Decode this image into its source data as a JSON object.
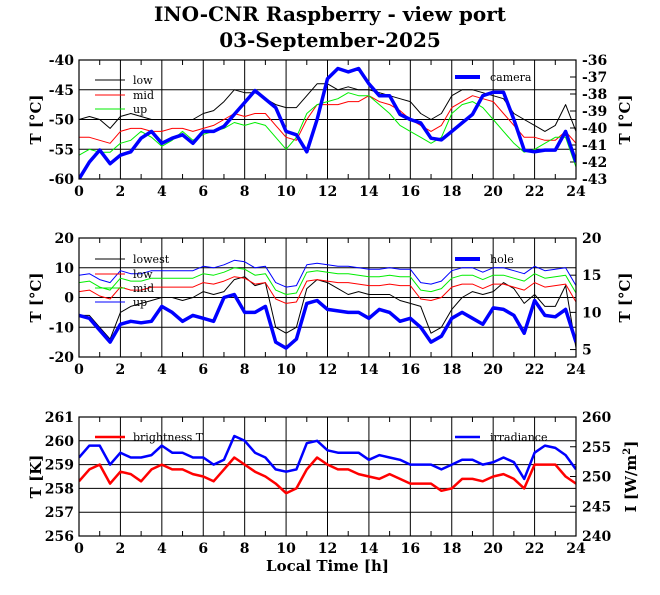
{
  "title": "INO-CNR Raspberry - view port",
  "subtitle": "03-September-2025",
  "colors": {
    "black": "#000000",
    "red": "#ff0000",
    "green": "#00ee00",
    "blue": "#0000ff"
  },
  "chart_data": [
    {
      "type": "line",
      "title": "",
      "xlabel": "",
      "ylabel": "T [°C]",
      "ylabel_right": "T [°C]",
      "xlim": [
        0,
        24
      ],
      "ylim": [
        -60,
        -40
      ],
      "ylim_right": [
        -43,
        -36
      ],
      "xticks": [
        "0",
        "2",
        "4",
        "6",
        "8",
        "10",
        "12",
        "14",
        "16",
        "18",
        "20",
        "22",
        "24"
      ],
      "yticks": [
        "-60",
        "-55",
        "-50",
        "-45",
        "-40"
      ],
      "yticks_right": [
        "-43",
        "-42",
        "-41",
        "-40",
        "-39",
        "-38",
        "-37",
        "-36"
      ],
      "grid": true,
      "legend_left": "top-left",
      "legend_right": "top-right",
      "x": [
        0,
        0.5,
        1,
        1.5,
        2,
        2.5,
        3,
        3.5,
        4,
        4.5,
        5,
        5.5,
        6,
        6.5,
        7,
        7.5,
        8,
        8.5,
        9,
        9.5,
        10,
        10.5,
        11,
        11.5,
        12,
        12.5,
        13,
        13.5,
        14,
        14.5,
        15,
        15.5,
        16,
        16.5,
        17,
        17.5,
        18,
        18.5,
        19,
        19.5,
        20,
        20.5,
        21,
        21.5,
        22,
        22.5,
        23,
        23.5,
        24
      ],
      "series": [
        {
          "name": "low",
          "axis": "left",
          "color": "#000000",
          "values": [
            -50,
            -49.5,
            -50,
            -51.5,
            -49.5,
            -49,
            -49.5,
            -50,
            -50,
            -50,
            -50,
            -50,
            -49,
            -48.5,
            -47,
            -45,
            -45.5,
            -45.5,
            -46.5,
            -47.5,
            -48,
            -48,
            -46,
            -44,
            -44,
            -45,
            -44.5,
            -45,
            -45,
            -45.5,
            -46,
            -46.5,
            -47,
            -49,
            -50,
            -49,
            -46,
            -45,
            -45,
            -45.5,
            -46,
            -46.5,
            -49,
            -50,
            -51,
            -52,
            -51,
            -47.5,
            -52
          ]
        },
        {
          "name": "mid",
          "axis": "left",
          "color": "#ff0000",
          "values": [
            -53,
            -53,
            -53.5,
            -54,
            -52,
            -51.5,
            -51.5,
            -52,
            -52,
            -51.5,
            -51.5,
            -52,
            -51.5,
            -51,
            -50,
            -49,
            -49.5,
            -49,
            -49,
            -51,
            -53,
            -53.5,
            -50,
            -47.5,
            -47.5,
            -47.5,
            -47,
            -47,
            -46,
            -47,
            -47.5,
            -48.5,
            -50,
            -51,
            -52,
            -51,
            -48,
            -47,
            -46,
            -46.5,
            -47,
            -49,
            -51,
            -53,
            -53,
            -53.5,
            -53.5,
            -52,
            -54
          ]
        },
        {
          "name": "up",
          "axis": "left",
          "color": "#00ee00",
          "values": [
            -56,
            -55,
            -55.5,
            -55.5,
            -54,
            -53.5,
            -52,
            -53,
            -54.5,
            -53.5,
            -52,
            -53.5,
            -52.5,
            -52,
            -51.5,
            -50.5,
            -51,
            -50.5,
            -51,
            -53,
            -55,
            -53,
            -49,
            -47.5,
            -47,
            -46.5,
            -45.5,
            -46,
            -46,
            -47.5,
            -49,
            -51,
            -52,
            -53,
            -54,
            -53,
            -49,
            -47.5,
            -47,
            -48,
            -50,
            -52,
            -54,
            -55.5,
            -55,
            -54,
            -53,
            -53,
            -58
          ]
        },
        {
          "name": "camera",
          "axis": "right",
          "color": "#0000ff",
          "thick": true,
          "values": [
            -43,
            -42,
            -41.3,
            -42.1,
            -41.6,
            -41.4,
            -40.6,
            -40.2,
            -40.9,
            -40.6,
            -40.4,
            -40.9,
            -40.2,
            -40.2,
            -39.9,
            -39.2,
            -38.5,
            -37.8,
            -38.3,
            -38.8,
            -40.2,
            -40.4,
            -41.4,
            -39.5,
            -37.1,
            -36.5,
            -36.7,
            -36.5,
            -37.4,
            -38.1,
            -38.1,
            -39.2,
            -39.5,
            -39.7,
            -40.6,
            -40.7,
            -40.2,
            -39.7,
            -39.2,
            -38.1,
            -37.9,
            -37.9,
            -39.5,
            -41.3,
            -41.4,
            -41.3,
            -41.3,
            -40.2,
            -42
          ]
        }
      ]
    },
    {
      "type": "line",
      "title": "",
      "xlabel": "",
      "ylabel": "T [°C]",
      "ylabel_right": "T [°C]",
      "xlim": [
        0,
        24
      ],
      "ylim": [
        -20,
        20
      ],
      "ylim_right": [
        4,
        20
      ],
      "xticks": [
        "0",
        "2",
        "4",
        "6",
        "8",
        "10",
        "12",
        "14",
        "16",
        "18",
        "20",
        "22",
        "24"
      ],
      "yticks": [
        "-20",
        "-10",
        "0",
        "10",
        "20"
      ],
      "yticks_right": [
        "5",
        "10",
        "15",
        "20"
      ],
      "grid": true,
      "legend_left": "top-left",
      "legend_right": "top-right",
      "x": [
        0,
        0.5,
        1,
        1.5,
        2,
        2.5,
        3,
        3.5,
        4,
        4.5,
        5,
        5.5,
        6,
        6.5,
        7,
        7.5,
        8,
        8.5,
        9,
        9.5,
        10,
        10.5,
        11,
        11.5,
        12,
        12.5,
        13,
        13.5,
        14,
        14.5,
        15,
        15.5,
        16,
        16.5,
        17,
        17.5,
        18,
        18.5,
        19,
        19.5,
        20,
        20.5,
        21,
        21.5,
        22,
        22.5,
        23,
        23.5,
        24
      ],
      "series": [
        {
          "name": "lowest",
          "axis": "left",
          "color": "#000000",
          "values": [
            -6,
            -6,
            -10,
            -14,
            -5,
            -3,
            -2,
            -1,
            0,
            0,
            -1,
            0,
            2,
            1,
            2,
            6,
            7,
            4,
            5,
            -10,
            -12,
            -10,
            3,
            6,
            5,
            3,
            1,
            2,
            1,
            1,
            1,
            -1,
            -2,
            -3,
            -12,
            -10,
            -4,
            0,
            2,
            1,
            2,
            5,
            3,
            -2,
            1,
            -3,
            -3,
            4,
            -17
          ]
        },
        {
          "name": "low",
          "axis": "left",
          "color": "#ff0000",
          "values": [
            2,
            2.5,
            0.5,
            -0.5,
            3.5,
            2.5,
            2.5,
            3.5,
            3.5,
            3.5,
            3.5,
            3.5,
            5,
            4.5,
            5.5,
            7,
            6.5,
            4.5,
            5,
            -0.5,
            -2,
            -1.5,
            5.5,
            6,
            5.5,
            5,
            5,
            4.5,
            4,
            4,
            4.5,
            4,
            4,
            -0.5,
            -1,
            0,
            3.5,
            4.5,
            4.5,
            3,
            4.5,
            4.5,
            3.5,
            2.5,
            5,
            3.5,
            4,
            4.5,
            -1.5
          ]
        },
        {
          "name": "mid",
          "axis": "left",
          "color": "#00ee00",
          "values": [
            5,
            5.5,
            3.5,
            2.5,
            6.5,
            5.5,
            5.5,
            6.5,
            6.5,
            6.5,
            6.5,
            6.5,
            8,
            7.5,
            8.5,
            10,
            9.5,
            7.5,
            8,
            2.5,
            1,
            1.5,
            8.5,
            9,
            8.5,
            8,
            8,
            7.5,
            7,
            7,
            7.5,
            7,
            7,
            2.5,
            2,
            3,
            6.5,
            7.5,
            7.5,
            6,
            7.5,
            7.5,
            6.5,
            5.5,
            8,
            6.5,
            7,
            7.5,
            1.5
          ]
        },
        {
          "name": "up",
          "axis": "left",
          "color": "#0000ff",
          "values": [
            7.5,
            8,
            6,
            5,
            9,
            8,
            8,
            9,
            9,
            9,
            9,
            9,
            10.5,
            10,
            11,
            12.5,
            12,
            10,
            10.5,
            5,
            3.5,
            4,
            11,
            11.5,
            11,
            10.5,
            10.5,
            10,
            9.5,
            9.5,
            10,
            9.5,
            9.5,
            5,
            4.5,
            5.5,
            9,
            10,
            10,
            8.5,
            10,
            10,
            9,
            8,
            10.5,
            9,
            9.5,
            10,
            4
          ]
        },
        {
          "name": "hole",
          "axis": "right",
          "color": "#0000ff",
          "thick": true,
          "values": [
            9.6,
            9.2,
            7.6,
            6,
            8.4,
            8.8,
            8.6,
            8.8,
            10.8,
            10,
            8.8,
            9.6,
            9.2,
            8.8,
            12,
            12.4,
            10,
            10,
            10.8,
            6,
            5.2,
            6.4,
            11.2,
            11.6,
            10.4,
            10.2,
            10,
            10,
            9.2,
            10.4,
            10,
            8.8,
            9.2,
            8,
            6,
            6.8,
            9.2,
            10,
            9.2,
            8.4,
            10.6,
            10.4,
            9.6,
            7.2,
            11.6,
            9.6,
            9.4,
            10.4,
            6
          ]
        }
      ]
    },
    {
      "type": "line",
      "title": "",
      "xlabel": "Local Time [h]",
      "ylabel": "T [K]",
      "ylabel_right": "I [W/m²]",
      "ylabel_right_base": "I [W/m",
      "ylabel_right_sup": "2",
      "ylabel_right_end": "]",
      "xlim": [
        0,
        24
      ],
      "ylim": [
        256,
        261
      ],
      "ylim_right": [
        240,
        260
      ],
      "xticks": [
        "0",
        "2",
        "4",
        "6",
        "8",
        "10",
        "12",
        "14",
        "16",
        "18",
        "20",
        "22",
        "24"
      ],
      "yticks": [
        "256",
        "257",
        "258",
        "259",
        "260",
        "261"
      ],
      "yticks_right": [
        "240",
        "245",
        "250",
        "255",
        "260"
      ],
      "grid": true,
      "legend_left": "top-left",
      "legend_right": "top-right",
      "x": [
        0,
        0.5,
        1,
        1.5,
        2,
        2.5,
        3,
        3.5,
        4,
        4.5,
        5,
        5.5,
        6,
        6.5,
        7,
        7.5,
        8,
        8.5,
        9,
        9.5,
        10,
        10.5,
        11,
        11.5,
        12,
        12.5,
        13,
        13.5,
        14,
        14.5,
        15,
        15.5,
        16,
        16.5,
        17,
        17.5,
        18,
        18.5,
        19,
        19.5,
        20,
        20.5,
        21,
        21.5,
        22,
        22.5,
        23,
        23.5,
        24
      ],
      "series": [
        {
          "name": "brightness T",
          "axis": "left",
          "color": "#ff0000",
          "values": [
            258.3,
            258.8,
            259,
            258.2,
            258.7,
            258.6,
            258.3,
            258.8,
            259,
            258.8,
            258.8,
            258.6,
            258.5,
            258.3,
            258.8,
            259.3,
            259,
            258.7,
            258.5,
            258.2,
            257.8,
            258,
            258.8,
            259.3,
            259,
            258.8,
            258.8,
            258.6,
            258.5,
            258.4,
            258.6,
            258.4,
            258.2,
            258.2,
            258.2,
            257.9,
            258,
            258.4,
            258.4,
            258.3,
            258.5,
            258.6,
            258.4,
            258,
            259,
            259,
            259,
            258.5,
            258.2
          ]
        },
        {
          "name": "irradiance",
          "axis": "right",
          "color": "#0000ff",
          "values": [
            253.2,
            255.2,
            255.2,
            252,
            254,
            253.2,
            253.2,
            253.6,
            255.2,
            254,
            254,
            253.2,
            253.2,
            252,
            252.8,
            256.8,
            256,
            254,
            253.2,
            251.2,
            250.8,
            251.2,
            255.6,
            256,
            254.4,
            254,
            254,
            254,
            252.8,
            253.6,
            253.2,
            252.8,
            252,
            252,
            252,
            251.2,
            252,
            252.8,
            252.8,
            252,
            252.4,
            253.2,
            252.4,
            249.6,
            254,
            255.2,
            254.8,
            253.6,
            251.2
          ]
        }
      ]
    }
  ]
}
